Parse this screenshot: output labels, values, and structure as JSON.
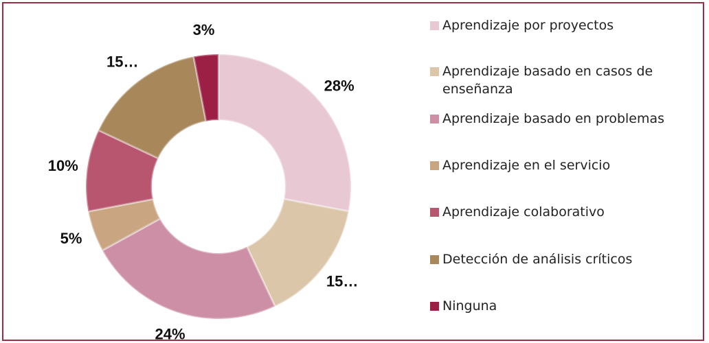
{
  "chart_data": {
    "type": "donut",
    "categories": [
      "Aprendizaje por proyectos",
      "Aprendizaje basado en casos de enseñanza",
      "Aprendizaje basado en problemas",
      "Aprendizaje en el servicio",
      "Aprendizaje colaborativo",
      "Detección de análisis críticos",
      "Ninguna"
    ],
    "values": [
      28,
      15,
      24,
      5,
      10,
      15,
      3
    ],
    "value_labels": [
      "28%",
      "15…",
      "24%",
      "5%",
      "10%",
      "15…",
      "3%"
    ],
    "colors": [
      "#e8c9d3",
      "#dcc6a9",
      "#cc8fa6",
      "#c9a582",
      "#b8566f",
      "#a8875a",
      "#9c1f46"
    ],
    "legend": "right"
  }
}
